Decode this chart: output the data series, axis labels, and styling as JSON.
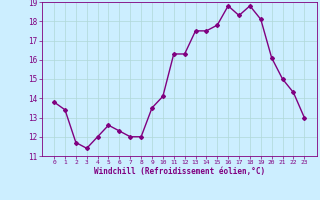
{
  "x": [
    0,
    1,
    2,
    3,
    4,
    5,
    6,
    7,
    8,
    9,
    10,
    11,
    12,
    13,
    14,
    15,
    16,
    17,
    18,
    19,
    20,
    21,
    22,
    23
  ],
  "y": [
    13.8,
    13.4,
    11.7,
    11.4,
    12.0,
    12.6,
    12.3,
    12.0,
    12.0,
    13.5,
    14.1,
    16.3,
    16.3,
    17.5,
    17.5,
    17.8,
    18.8,
    18.3,
    18.8,
    18.1,
    16.1,
    15.0,
    14.3,
    13.0
  ],
  "line_color": "#800080",
  "marker": "D",
  "marker_size": 2,
  "bg_color": "#cceeff",
  "grid_color": "#b0d8d8",
  "xlabel": "Windchill (Refroidissement éolien,°C)",
  "xlabel_color": "#800080",
  "tick_color": "#800080",
  "ylim": [
    11,
    19
  ],
  "yticks": [
    11,
    12,
    13,
    14,
    15,
    16,
    17,
    18,
    19
  ],
  "xticks": [
    0,
    1,
    2,
    3,
    4,
    5,
    6,
    7,
    8,
    9,
    10,
    11,
    12,
    13,
    14,
    15,
    16,
    17,
    18,
    19,
    20,
    21,
    22,
    23
  ],
  "line_width": 1.0
}
